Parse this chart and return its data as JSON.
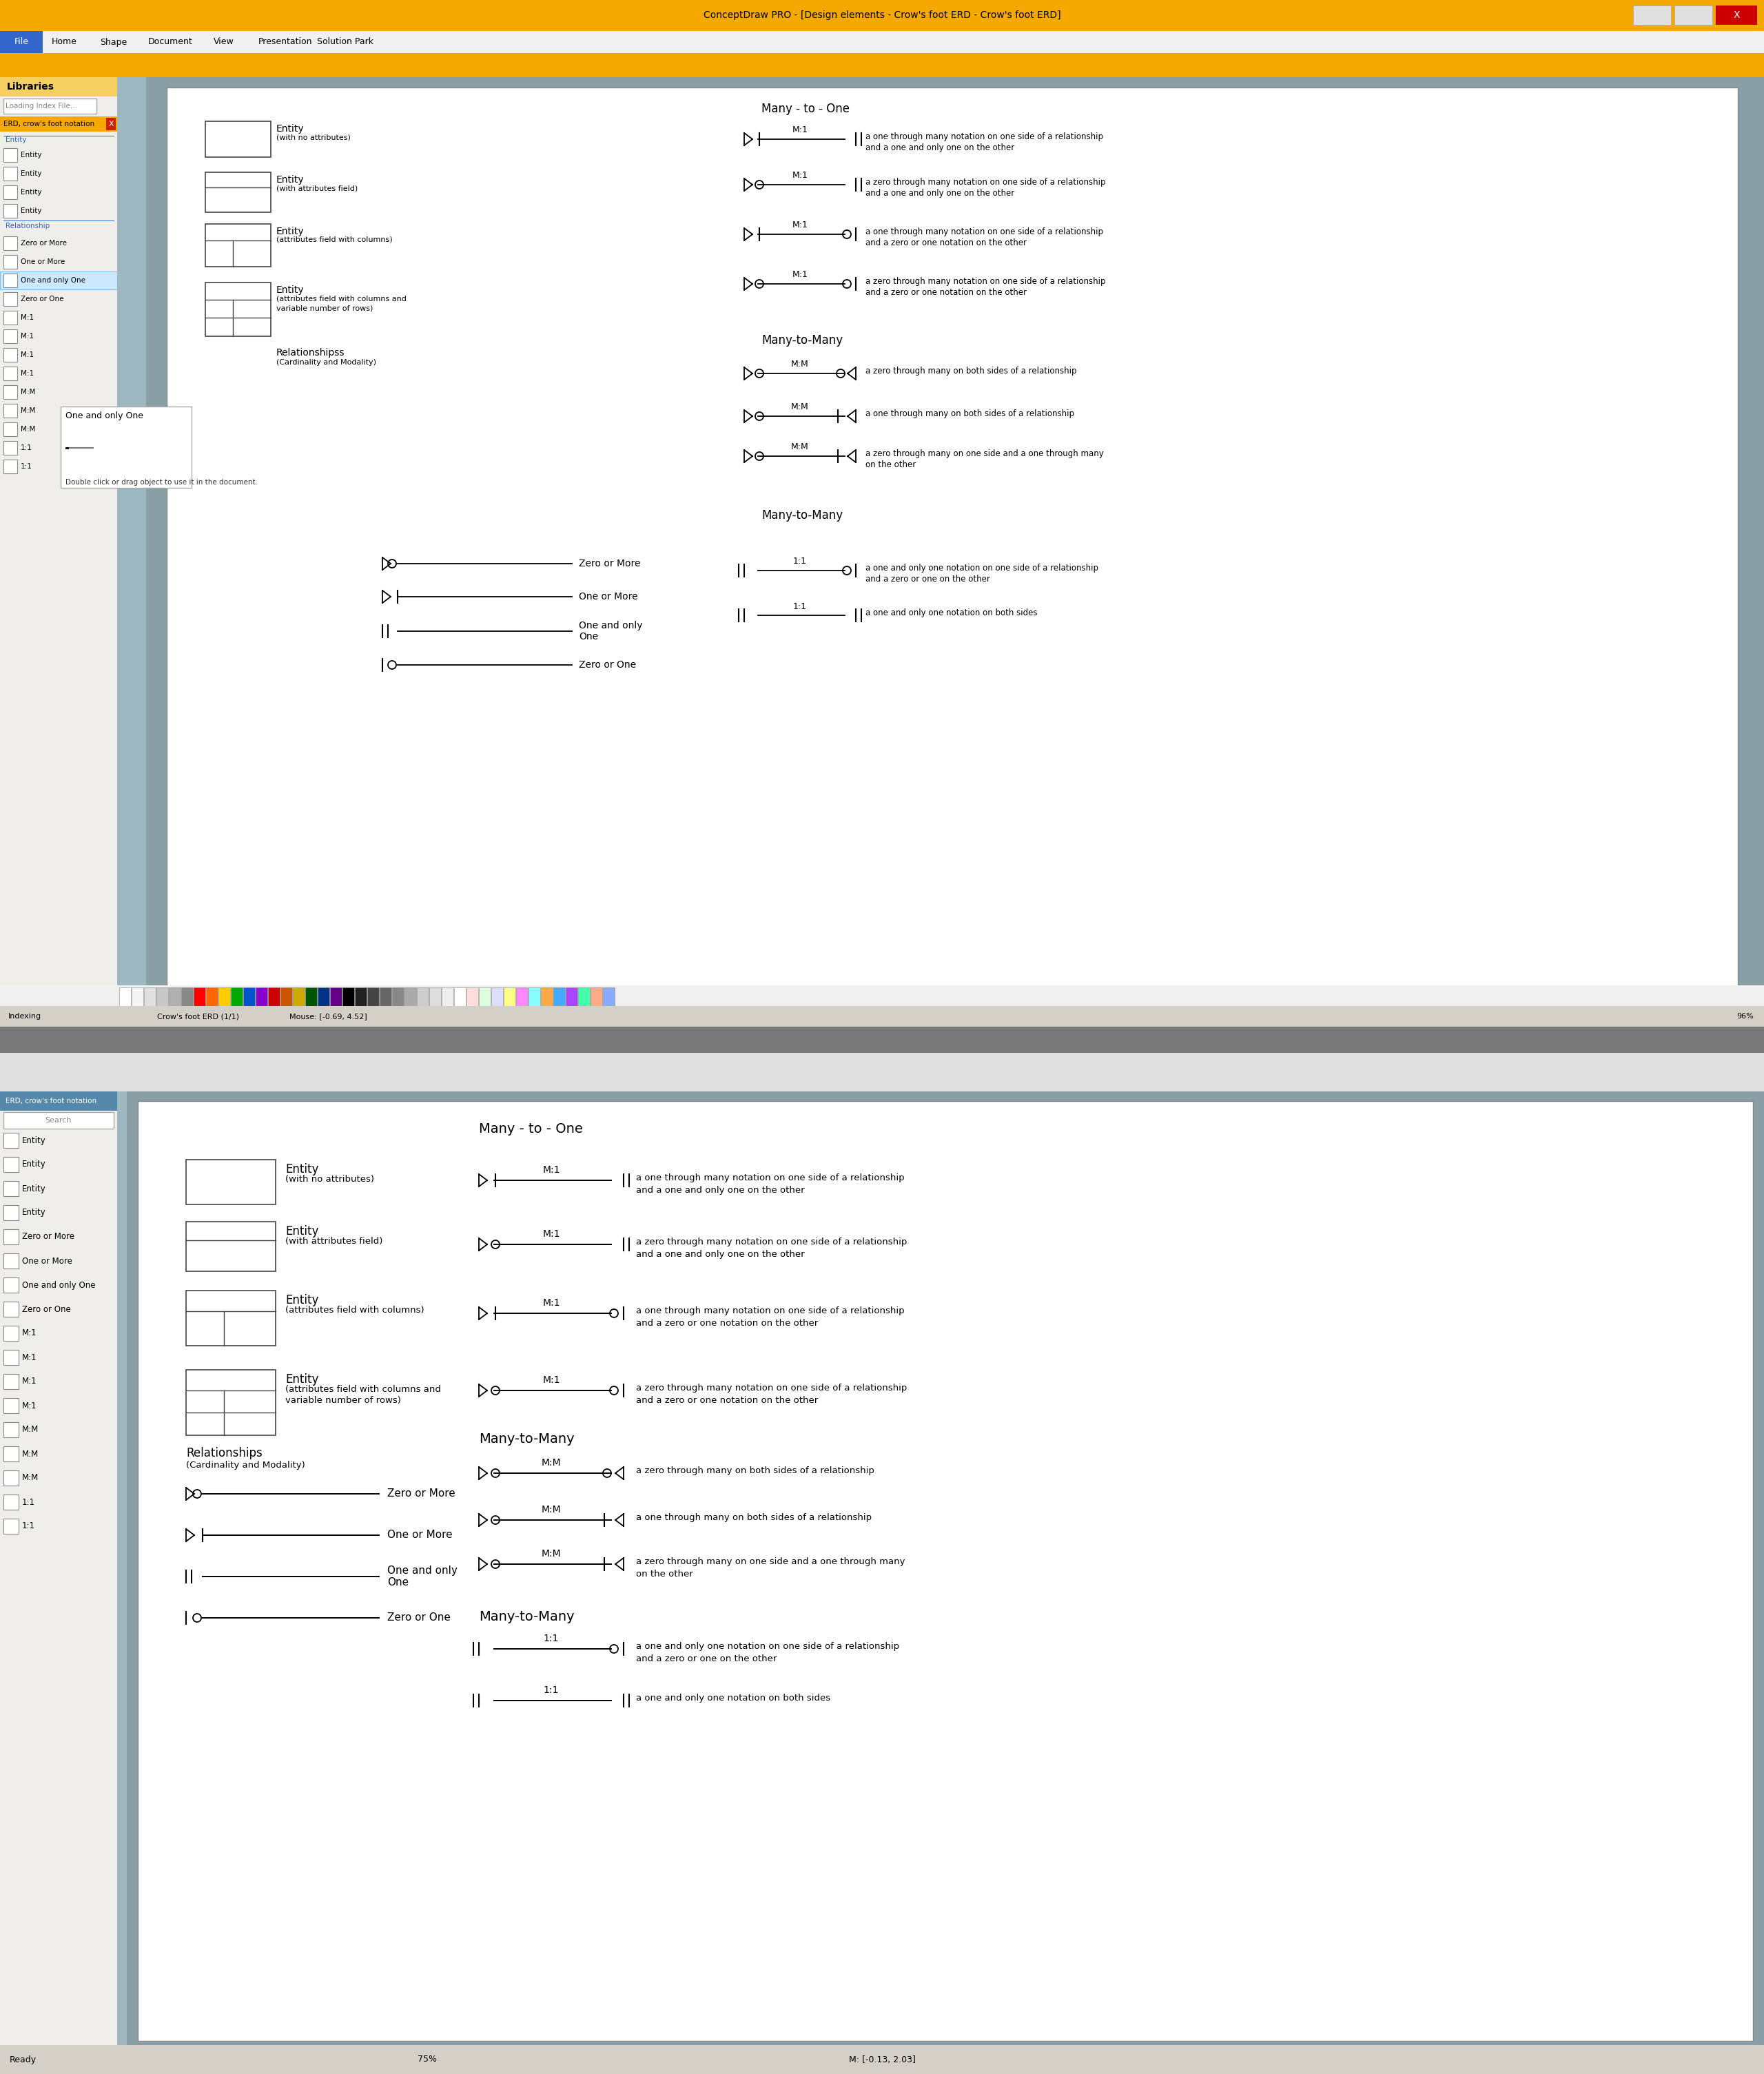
{
  "title": "ConceptDraw PRO - [Design elements - Crow's foot ERD - Crow's foot ERD]",
  "menu_items": [
    "File",
    "Home",
    "Shape",
    "Document",
    "View",
    "Presentation",
    "Solution Park"
  ],
  "library_title": "Libraries",
  "search_placeholder": "Loading Index File...",
  "erd_section": "ERD, crow's foot notation",
  "entity_section": "Entity",
  "relationship_section": "Relationship",
  "left_panel_items_top": [
    "Entity",
    "Entity",
    "Entity",
    "Entity"
  ],
  "left_panel_items_rel": [
    "Zero or More",
    "One or More",
    "One and only One",
    "Zero or One",
    "M:1",
    "M:1",
    "M:1",
    "M:1",
    "M:M",
    "M:M",
    "M:M",
    "1:1",
    "1:1"
  ],
  "tooltip_title": "One and only One",
  "tooltip_text": "Double click or drag object to use it in the document.",
  "bottom_status_left": "Indexing",
  "bottom_status_mouse": "Mouse: [-0.69, 4.52]",
  "bottom_status_right": "96%",
  "canvas_nav": "Crow's foot ERD (1/1)",
  "many_to_one_title": "Many - to - One",
  "many_to_many_title": "Many-to-Many",
  "mto_label": "M:1",
  "mtm_label": "M:M",
  "oneone_label": "1:1",
  "mto_descs": [
    [
      "a one through many notation on one side of a relationship",
      "and a one and only one on the other"
    ],
    [
      "a zero through many notation on one side of a relationship",
      "and a one and only one on the other"
    ],
    [
      "a one through many notation on one side of a relationship",
      "and a zero or one notation on the other"
    ],
    [
      "a zero through many notation on one side of a relationship",
      "and a zero or one notation on the other"
    ]
  ],
  "mtm_descs": [
    [
      "a zero through many on both sides of a relationship"
    ],
    [
      "a one through many on both sides of a relationship"
    ],
    [
      "a zero through many on one side and a one through many",
      "on the other"
    ]
  ],
  "oneone_descs": [
    [
      "a one and only one notation on one side of a relationship",
      "and a zero or one on the other"
    ],
    [
      "a one and only one notation on both sides"
    ]
  ],
  "rel_labels": [
    "Zero or More",
    "One or More",
    "One and only\nOne",
    "Zero or One"
  ],
  "entity_labels": [
    [
      "Entity",
      "(with no attributes)"
    ],
    [
      "Entity",
      "(with attributes field)"
    ],
    [
      "Entity",
      "(attributes field with columns)"
    ],
    [
      "Entity",
      "(attributes field with columns and",
      "variable number of rows)"
    ]
  ],
  "rel_section_label": "Relationships",
  "rel_section_sub": "(Cardinality and Modality)",
  "bot_left_panel_items": [
    "Entity",
    "Entity",
    "Entity",
    "Entity",
    "Zero or More",
    "One or More",
    "One and only One",
    "Zero or One",
    "M:1",
    "M:1",
    "M:1",
    "M:1",
    "M:M",
    "M:M",
    "M:M",
    "1:1",
    "1:1"
  ],
  "zoom_level": "75%",
  "status_bar": "M: [-0.13, 2.03]",
  "ready_text": "Ready",
  "toolbar_gold": "#f5a800",
  "toolbar_gold2": "#f5d060",
  "menu_blue": "#3366cc",
  "panel_bg": "#f0eeea",
  "sidebar_color": "#9eb8c2",
  "canvas_surround": "#8a9fa5",
  "selected_highlight": "#cce8ff",
  "selected_border": "#88bbee",
  "tooltip_border": "#aaaaaa",
  "status_bar_bg": "#d4d0c8",
  "erd_header_blue": "#5588aa",
  "win_red": "#cc0000",
  "palette_colors": [
    "#ffffff",
    "#f5f5f5",
    "#e0e0e0",
    "#c8c8c8",
    "#b0b0b0",
    "#888888",
    "#ff0000",
    "#ff6600",
    "#ffcc00",
    "#00aa00",
    "#0055cc",
    "#8800cc",
    "#cc0000",
    "#cc5500",
    "#ccaa00",
    "#005500",
    "#003388",
    "#660088",
    "#000000",
    "#222222",
    "#444444",
    "#666666",
    "#888888",
    "#aaaaaa",
    "#cccccc",
    "#dddddd",
    "#eeeeee",
    "#ffffff",
    "#ffdddd",
    "#ddffdd",
    "#ddddff",
    "#ffff88",
    "#ff88ff",
    "#88ffff",
    "#ffaa44",
    "#44aaff",
    "#aa44ff",
    "#44ffaa",
    "#ffaa88",
    "#88aaff"
  ]
}
